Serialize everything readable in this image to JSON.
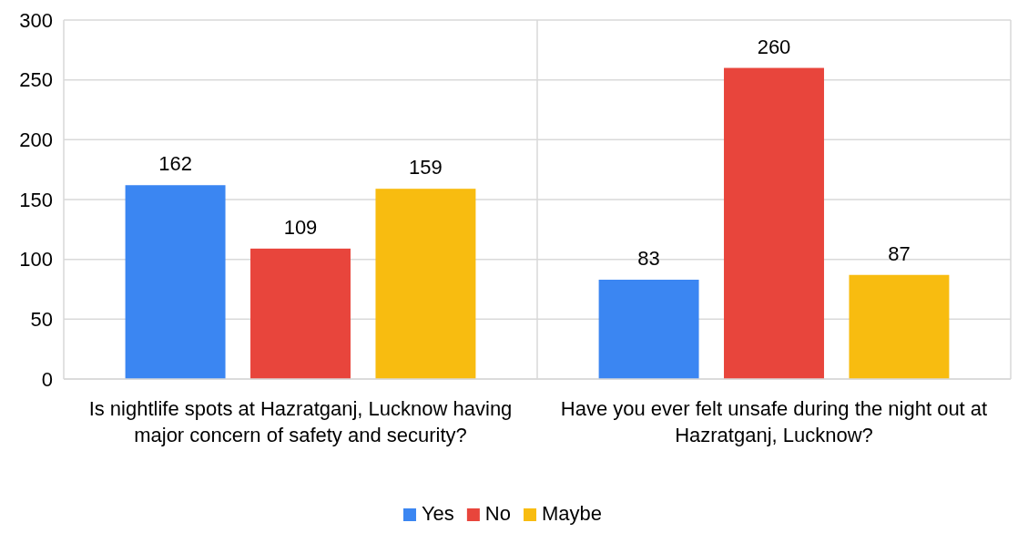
{
  "chart_data": {
    "type": "bar",
    "categories": [
      "Is nightlife spots at Hazratganj, Lucknow having major concern of safety and security?",
      "Have you ever felt unsafe during the night out at Hazratganj, Lucknow?"
    ],
    "series": [
      {
        "name": "Yes",
        "color": "#3b86f2",
        "values": [
          162,
          83
        ]
      },
      {
        "name": "No",
        "color": "#e8453c",
        "values": [
          109,
          260
        ]
      },
      {
        "name": "Maybe",
        "color": "#f8bc10",
        "values": [
          159,
          87
        ]
      }
    ],
    "ylim": [
      0,
      300
    ],
    "yticks": [
      0,
      50,
      100,
      150,
      200,
      250,
      300
    ],
    "grid": true,
    "legend": "bottom",
    "data_labels": true
  }
}
